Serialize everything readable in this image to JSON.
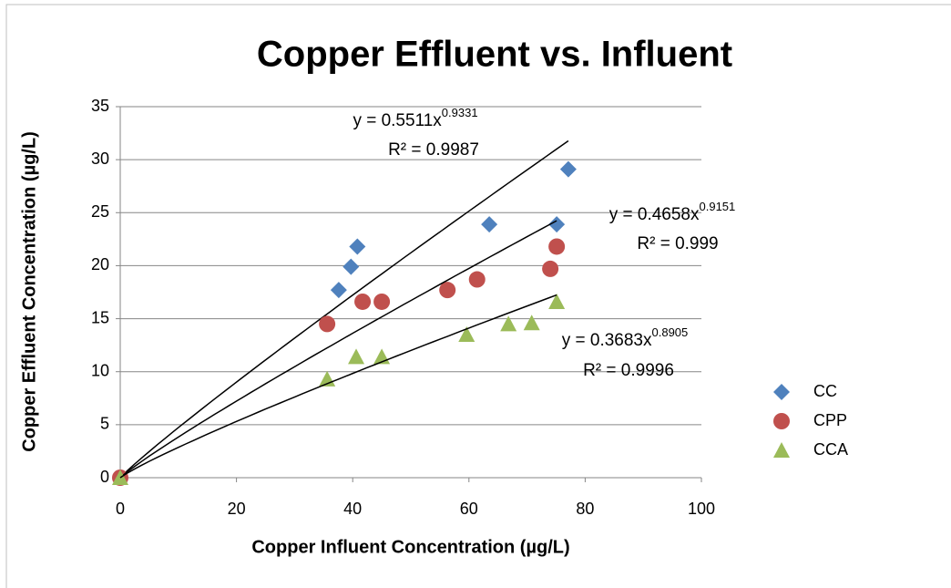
{
  "chart_data": {
    "type": "scatter",
    "title": "Copper Effluent vs. Influent",
    "x_label": "Copper Influent Concentration (µg/L)",
    "y_label": "Copper Effluent Concentration (µg/L)",
    "xlim": [
      0,
      100
    ],
    "xticks": [
      0,
      20,
      40,
      60,
      80,
      100
    ],
    "ylim": [
      0,
      35
    ],
    "yticks": [
      0,
      5,
      10,
      15,
      20,
      25,
      30,
      35
    ],
    "grid": true,
    "legend": "right",
    "series": [
      {
        "name": "CC",
        "color": "#4f81bd",
        "marker": "diamond",
        "x": [
          0,
          37.6,
          39.7,
          40.8,
          63.5,
          75.1,
          77.1
        ],
        "values": [
          0,
          17.7,
          19.9,
          21.8,
          23.9,
          23.9,
          29.1
        ],
        "trendline": {
          "coefficient": 0.5511,
          "exponent": 0.9331,
          "equation": "y = 0.5511x",
          "exponent_label": "0.9331",
          "r_squared": "R² = 0.9987"
        }
      },
      {
        "name": "CPP",
        "color": "#c0504d",
        "marker": "circle",
        "x": [
          0,
          35.6,
          41.7,
          45,
          56.3,
          61.4,
          74,
          75.1
        ],
        "values": [
          0,
          14.5,
          16.6,
          16.6,
          17.7,
          18.7,
          19.7,
          21.8
        ],
        "trendline": {
          "coefficient": 0.4658,
          "exponent": 0.9151,
          "equation": "y = 0.4658x",
          "exponent_label": "0.9151",
          "r_squared": "R² = 0.999"
        }
      },
      {
        "name": "CCA",
        "color": "#9bbb59",
        "marker": "triangle",
        "x": [
          0,
          35.6,
          40.6,
          45,
          59.6,
          66.8,
          70.8,
          75.1
        ],
        "values": [
          0,
          9.3,
          11.4,
          11.4,
          13.5,
          14.5,
          14.6,
          16.6
        ],
        "trendline": {
          "coefficient": 0.3683,
          "exponent": 0.8905,
          "equation": "y = 0.3683x",
          "exponent_label": "0.8905",
          "r_squared": "R² = 0.9996"
        }
      }
    ]
  }
}
